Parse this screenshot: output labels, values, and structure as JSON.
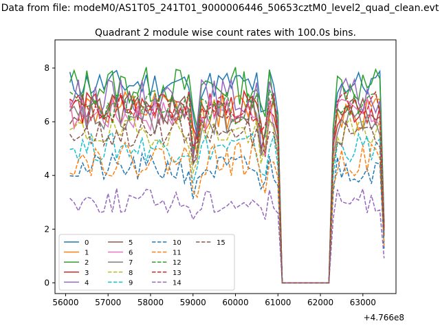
{
  "figure": {
    "suptitle": "Data from file: modeM0/AS1T05_241T01_9000006446_50653cztM0_level2_quad_clean.evt",
    "title": "Quadrant 2 module wise count rates with 100.0s bins.",
    "offset_label": "+4.766e8"
  },
  "chart_data": {
    "type": "line",
    "title": "Quadrant 2 module wise count rates with 100.0s bins.",
    "xlabel": "",
    "ylabel": "",
    "x_offset": 476600000,
    "xlim": [
      55750,
      63780
    ],
    "ylim": [
      -0.4,
      9.05
    ],
    "xticks": [
      56000,
      57000,
      58000,
      59000,
      60000,
      61000,
      62000,
      63000
    ],
    "yticks": [
      0,
      2,
      4,
      6,
      8
    ],
    "grid": false,
    "legend": {
      "placement": "lower-left",
      "columns": 4
    },
    "x_segments": [
      {
        "start": 56100,
        "end": 61000,
        "step": 100
      },
      {
        "start": 61100,
        "end": 62200,
        "step": 100
      },
      {
        "start": 62300,
        "end": 63500,
        "step": 100
      }
    ],
    "series": [
      {
        "name": "0",
        "color": "#1f77b4",
        "dashed": false,
        "base": 7.4,
        "amp": 0.35,
        "seed": 11
      },
      {
        "name": "1",
        "color": "#ff7f0e",
        "dashed": false,
        "base": 6.4,
        "amp": 0.45,
        "seed": 12
      },
      {
        "name": "2",
        "color": "#2ca02c",
        "dashed": false,
        "base": 7.35,
        "amp": 0.45,
        "seed": 13
      },
      {
        "name": "3",
        "color": "#d62728",
        "dashed": false,
        "base": 6.5,
        "amp": 0.4,
        "seed": 14
      },
      {
        "name": "4",
        "color": "#9467bd",
        "dashed": false,
        "base": 6.9,
        "amp": 0.45,
        "seed": 15
      },
      {
        "name": "5",
        "color": "#8c564b",
        "dashed": false,
        "base": 6.45,
        "amp": 0.4,
        "seed": 16
      },
      {
        "name": "6",
        "color": "#e377c2",
        "dashed": false,
        "base": 6.3,
        "amp": 0.4,
        "seed": 17
      },
      {
        "name": "7",
        "color": "#7f7f7f",
        "dashed": false,
        "base": 6.1,
        "amp": 0.4,
        "seed": 18
      },
      {
        "name": "8",
        "color": "#bcbd22",
        "dashed": true,
        "base": 5.6,
        "amp": 0.35,
        "seed": 19
      },
      {
        "name": "9",
        "color": "#17becf",
        "dashed": true,
        "base": 5.05,
        "amp": 0.35,
        "seed": 20
      },
      {
        "name": "10",
        "color": "#1f77b4",
        "dashed": true,
        "base": 4.25,
        "amp": 0.35,
        "seed": 21
      },
      {
        "name": "11",
        "color": "#ff7f0e",
        "dashed": true,
        "base": 4.6,
        "amp": 0.4,
        "seed": 22
      },
      {
        "name": "12",
        "color": "#2ca02c",
        "dashed": true,
        "base": 6.55,
        "amp": 0.4,
        "seed": 23
      },
      {
        "name": "13",
        "color": "#d62728",
        "dashed": true,
        "base": 6.55,
        "amp": 0.35,
        "seed": 24
      },
      {
        "name": "14",
        "color": "#9467bd",
        "dashed": true,
        "base": 3.05,
        "amp": 0.3,
        "seed": 25
      },
      {
        "name": "15",
        "color": "#8c564b",
        "dashed": true,
        "base": 5.6,
        "amp": 0.35,
        "seed": 26
      }
    ]
  }
}
